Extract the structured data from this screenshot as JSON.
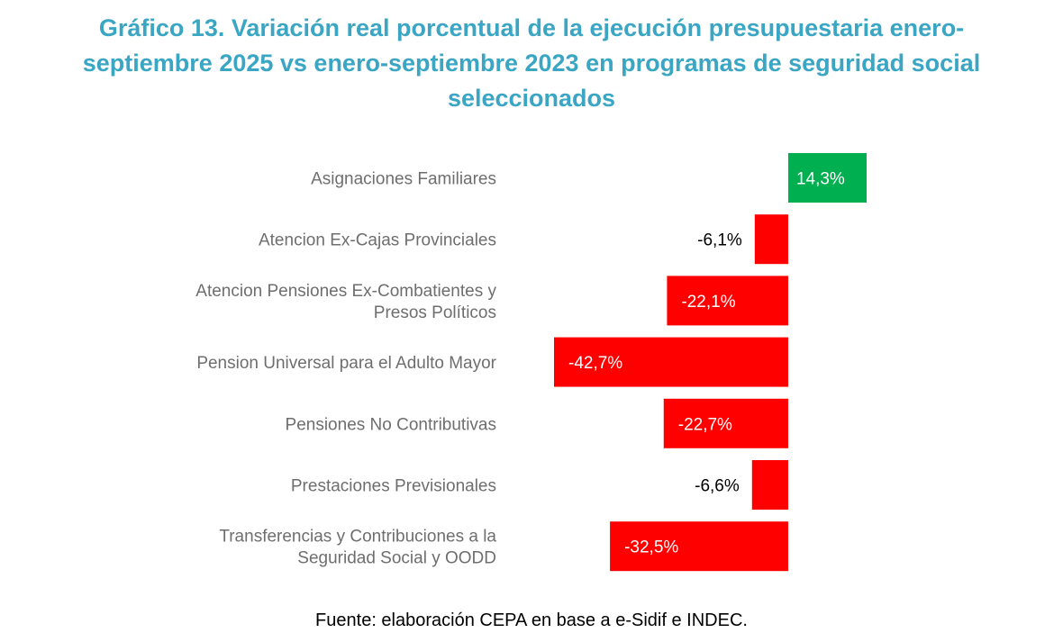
{
  "colors": {
    "title": "#3aa6c4",
    "positive": "#00b050",
    "negative": "#ff0000",
    "category_text": "#6e6e6e"
  },
  "chart_data": {
    "type": "bar",
    "orientation": "horizontal",
    "title": "Gráfico 13. Variación real porcentual de la ejecución presupuestaria enero-septiembre 2025 vs enero-septiembre 2023 en programas de seguridad social seleccionados",
    "title_lines": [
      "Gráfico 13. Variación real porcentual de la ejecución presupuestaria enero-",
      "septiembre 2025 vs enero-septiembre 2023 en programas de seguridad social",
      "seleccionados"
    ],
    "categories": [
      "Asignaciones Familiares",
      "Atencion Ex-Cajas Provinciales",
      "Atencion Pensiones Ex-Combatientes y Presos Políticos",
      "Pension Universal para el Adulto Mayor",
      "Pensiones No Contributivas",
      "Prestaciones Previsionales",
      "Transferencias y Contribuciones a la Seguridad Social y OODD"
    ],
    "category_lines": [
      [
        "Asignaciones Familiares"
      ],
      [
        "Atencion Ex-Cajas Provinciales"
      ],
      [
        "Atencion Pensiones Ex-Combatientes y",
        "Presos Políticos"
      ],
      [
        "Pension Universal para el Adulto Mayor"
      ],
      [
        "Pensiones No Contributivas"
      ],
      [
        "Prestaciones Previsionales"
      ],
      [
        "Transferencias y Contribuciones a la",
        "Seguridad Social y OODD"
      ]
    ],
    "values": [
      14.3,
      -6.1,
      -22.1,
      -42.7,
      -22.7,
      -6.6,
      -32.5
    ],
    "data_labels": [
      "14,3%",
      "-6,1%",
      "-22,1%",
      "-42,7%",
      "-22,7%",
      "-6,6%",
      "-32,5%"
    ],
    "xlim": [
      -42.7,
      14.3
    ],
    "xlabel": "",
    "ylabel": "",
    "grid": false,
    "legend": "none"
  },
  "source": "Fuente: elaboración CEPA en base a e-Sidif e INDEC."
}
